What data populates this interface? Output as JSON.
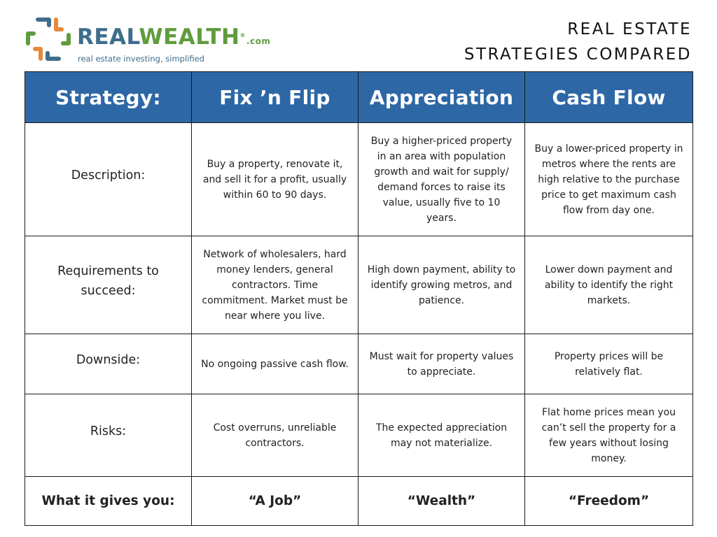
{
  "brand": {
    "name_part1": "REAL",
    "name_part2": "WEALTH",
    "registered": "®",
    "domain_suffix": ".com",
    "tagline": "real estate investing, simplified",
    "colors": {
      "blue": "#3f6d8c",
      "green": "#5f9c3c",
      "orange": "#e8893a"
    }
  },
  "title": {
    "line1": "REAL ESTATE",
    "line2": "STRATEGIES COMPARED"
  },
  "table": {
    "header_color": "#2e67a5",
    "headers": [
      "Strategy:",
      "Fix ’n Flip",
      "Appreciation",
      "Cash Flow"
    ],
    "rows": [
      {
        "label": "Description:",
        "fix_flip": "Buy a property, renovate it, and sell it for a profit, usually within 60 to 90 days.",
        "appreciation": "Buy a higher-priced property in an area with population growth and wait for supply/ demand forces to raise its value, usually five to 10 years.",
        "cash_flow": "Buy a lower-priced property in metros where the rents are high relative to the purchase price to get maximum cash flow from day one."
      },
      {
        "label": "Requirements to succeed:",
        "fix_flip": "Network of wholesalers, hard money lenders, general contractors. Time commitment. Market must be near where you live.",
        "appreciation": "High down payment, ability to identify growing metros, and patience.",
        "cash_flow": "Lower down payment and ability to identify the right markets."
      },
      {
        "label": "Downside:",
        "fix_flip": "No ongoing passive cash flow.",
        "appreciation": "Must wait for property values to appreciate.",
        "cash_flow": "Property prices will be relatively flat."
      },
      {
        "label": "Risks:",
        "fix_flip": "Cost overruns, unreliable contractors.",
        "appreciation": "The expected appreciation may not materialize.",
        "cash_flow": "Flat home prices mean you can’t sell the property for a few years without losing money."
      },
      {
        "label": "What it gives you:",
        "fix_flip": "“A Job”",
        "appreciation": "“Wealth”",
        "cash_flow": "“Freedom”"
      }
    ]
  }
}
